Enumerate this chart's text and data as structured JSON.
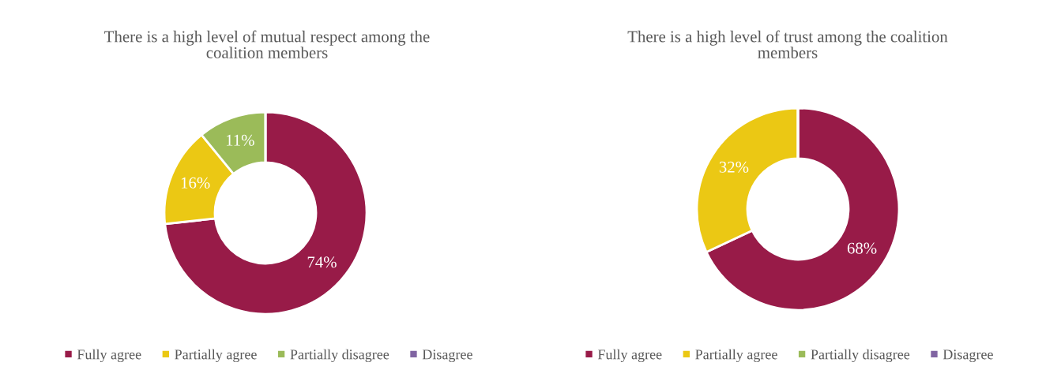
{
  "chart_data": [
    {
      "type": "donut",
      "title": "There is a high level of mutual respect among the\ncoalition members",
      "categories": [
        "Fully agree",
        "Partially agree",
        "Partially disagree",
        "Disagree"
      ],
      "values": [
        74,
        16,
        11,
        0
      ],
      "colors": [
        "#981b48",
        "#ebc814",
        "#9bbb59",
        "#8064a2"
      ],
      "value_labels": [
        "74%",
        "16%",
        "11%",
        null
      ],
      "legend": "bottom"
    },
    {
      "type": "donut",
      "title": "There is a high level of trust among the coalition\nmembers",
      "categories": [
        "Fully agree",
        "Partially agree",
        "Partially disagree",
        "Disagree"
      ],
      "values": [
        68,
        32,
        0,
        0
      ],
      "colors": [
        "#981b48",
        "#ebc814",
        "#9bbb59",
        "#8064a2"
      ],
      "value_labels": [
        "68%",
        "32%",
        null,
        null
      ],
      "legend": "bottom"
    }
  ]
}
